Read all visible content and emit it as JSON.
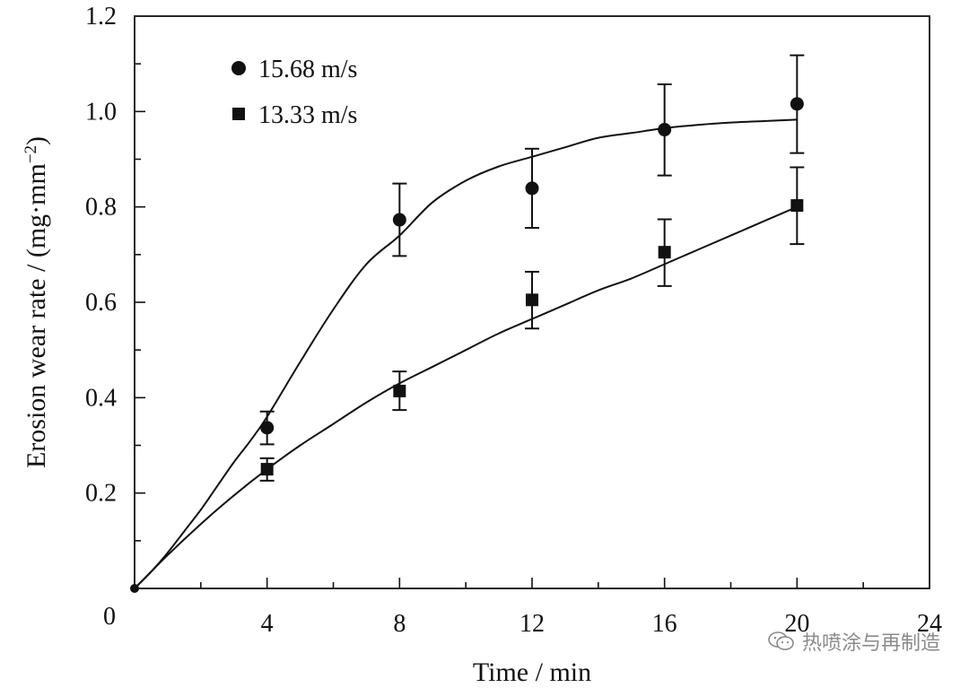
{
  "chart_data": {
    "type": "scatter",
    "title": "",
    "xlabel": "Time / min",
    "ylabel_main": "Erosion wear rate / (mg·mm",
    "ylabel_sup": "−2",
    "ylabel_close": ")",
    "xlim": [
      0,
      24
    ],
    "ylim": [
      0,
      1.2
    ],
    "xticks": [
      4,
      8,
      12,
      16,
      20,
      24
    ],
    "xtick_labels": [
      "4",
      "8",
      "12",
      "16",
      "20",
      "24"
    ],
    "origin_label": "0",
    "yticks": [
      0.2,
      0.4,
      0.6,
      0.8,
      1.0,
      1.2
    ],
    "ytick_labels": [
      "0.2",
      "0.4",
      "0.6",
      "0.8",
      "1.0",
      "1.2"
    ],
    "legend_position": "top-left",
    "series": [
      {
        "name": "15.68 m/s",
        "marker": "circle",
        "x": [
          4,
          8,
          12,
          16,
          20
        ],
        "values": [
          0.337,
          0.773,
          0.839,
          0.962,
          1.016
        ],
        "err_lower": [
          0.302,
          0.697,
          0.756,
          0.866,
          0.913
        ],
        "err_upper": [
          0.371,
          0.849,
          0.922,
          1.057,
          1.118
        ],
        "fit_x": [
          0,
          0.5,
          1,
          1.5,
          2,
          2.5,
          3,
          3.5,
          4,
          5,
          6,
          7,
          8,
          9,
          10,
          11,
          12,
          13,
          14,
          15,
          16,
          17,
          18,
          19,
          20
        ],
        "fit_y": [
          0,
          0.035,
          0.075,
          0.12,
          0.165,
          0.215,
          0.265,
          0.31,
          0.36,
          0.475,
          0.585,
          0.68,
          0.74,
          0.81,
          0.855,
          0.885,
          0.905,
          0.925,
          0.945,
          0.955,
          0.965,
          0.972,
          0.977,
          0.98,
          0.983
        ]
      },
      {
        "name": "13.33 m/s",
        "marker": "square",
        "x": [
          4,
          8,
          12,
          16,
          20
        ],
        "values": [
          0.25,
          0.414,
          0.605,
          0.705,
          0.803
        ],
        "err_lower": [
          0.226,
          0.374,
          0.545,
          0.634,
          0.722
        ],
        "err_upper": [
          0.273,
          0.455,
          0.664,
          0.774,
          0.883
        ],
        "fit_x": [
          0,
          1,
          2,
          3,
          4,
          5,
          6,
          7,
          8,
          9,
          10,
          11,
          12,
          13,
          14,
          15,
          16,
          17,
          18,
          19,
          20
        ],
        "fit_y": [
          0,
          0.07,
          0.135,
          0.195,
          0.25,
          0.3,
          0.345,
          0.39,
          0.43,
          0.465,
          0.5,
          0.535,
          0.565,
          0.595,
          0.625,
          0.65,
          0.68,
          0.71,
          0.74,
          0.77,
          0.8
        ]
      }
    ]
  },
  "watermark": {
    "text": "热喷涂与再制造",
    "icon": "wechat-icon",
    "color": "#8a8a8a"
  }
}
